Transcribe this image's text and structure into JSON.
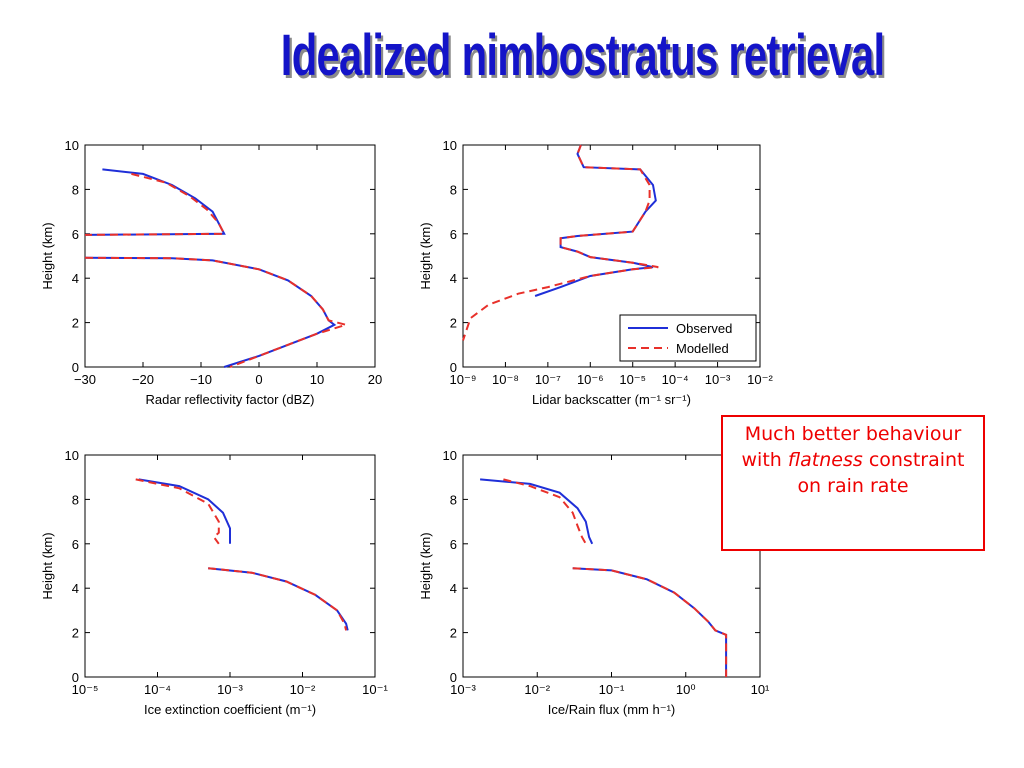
{
  "title": "Idealized nimbostratus retrieval",
  "callout": {
    "before": "Much better behaviour with",
    "emphasis": "flatness",
    "after": "constraint on rain rate"
  },
  "chart_data": [
    {
      "type": "line",
      "xlabel": "Radar reflectivity factor (dBZ)",
      "ylabel": "Height (km)",
      "xscale": "linear",
      "xlim": [
        -30,
        20
      ],
      "ylim": [
        0,
        10
      ],
      "xticks": [
        {
          "value": -30,
          "label": "−30"
        },
        {
          "value": -20,
          "label": "−20"
        },
        {
          "value": -10,
          "label": "−10"
        },
        0,
        10,
        20
      ],
      "yticks": [
        0,
        2,
        4,
        6,
        8,
        10
      ],
      "series": [
        {
          "color": "#1f2fd8",
          "dash": false,
          "x": [
            -27,
            -20,
            -15,
            -11,
            -8,
            -6,
            -30,
            null,
            -30,
            -15,
            -8,
            0,
            5,
            9,
            11,
            12,
            13,
            10,
            5,
            0,
            -6
          ],
          "y": [
            8.9,
            8.7,
            8.2,
            7.6,
            7.0,
            6.0,
            5.95,
            null,
            4.92,
            4.9,
            4.8,
            4.4,
            3.9,
            3.2,
            2.6,
            2.1,
            1.9,
            1.5,
            1.0,
            0.5,
            0
          ]
        },
        {
          "color": "#e8302a",
          "dash": true,
          "x": [
            -22,
            -16,
            -12,
            -9,
            -7,
            -6,
            -30,
            null,
            -30,
            -15,
            -8,
            0,
            5,
            9,
            11,
            12,
            15,
            10,
            5,
            0,
            -5
          ],
          "y": [
            8.7,
            8.3,
            7.7,
            7.1,
            6.5,
            6.0,
            5.95,
            null,
            4.92,
            4.9,
            4.8,
            4.4,
            3.9,
            3.2,
            2.6,
            2.1,
            1.9,
            1.5,
            1.0,
            0.5,
            0
          ]
        }
      ]
    },
    {
      "type": "line",
      "xlabel": "Lidar backscatter (m⁻¹ sr⁻¹)",
      "ylabel": "Height (km)",
      "xscale": "log",
      "xlim": [
        1e-09,
        0.01
      ],
      "ylim": [
        0,
        10
      ],
      "xticks": [
        {
          "value": 1e-09,
          "label": "10⁻⁹"
        },
        {
          "value": 1e-08,
          "label": "10⁻⁸"
        },
        {
          "value": 1e-07,
          "label": "10⁻⁷"
        },
        {
          "value": 1e-06,
          "label": "10⁻⁶"
        },
        {
          "value": 1e-05,
          "label": "10⁻⁵"
        },
        {
          "value": 0.0001,
          "label": "10⁻⁴"
        },
        {
          "value": 0.001,
          "label": "10⁻³"
        },
        {
          "value": 0.01,
          "label": "10⁻²"
        }
      ],
      "yticks": [
        0,
        2,
        4,
        6,
        8,
        10
      ],
      "legend": "lower right",
      "series": [
        {
          "name": "Observed",
          "color": "#1f2fd8",
          "dash": false,
          "x": [
            6e-07,
            5e-07,
            7e-07,
            1.5e-05,
            3e-05,
            3.5e-05,
            2e-05,
            1e-05,
            5e-07,
            2e-07,
            2e-07,
            5e-07,
            1e-06,
            1e-05,
            3e-05,
            1e-05,
            1e-06,
            2e-07,
            5e-08
          ],
          "y": [
            10,
            9.6,
            9.0,
            8.9,
            8.2,
            7.5,
            7.0,
            6.1,
            5.9,
            5.8,
            5.4,
            5.2,
            4.95,
            4.7,
            4.5,
            4.4,
            4.1,
            3.6,
            3.2
          ]
        },
        {
          "name": "Modelled",
          "color": "#e8302a",
          "dash": true,
          "x": [
            6e-07,
            5e-07,
            7e-07,
            1.5e-05,
            2.5e-05,
            2.5e-05,
            2e-05,
            1e-05,
            5e-07,
            2e-07,
            2e-07,
            5e-07,
            1e-06,
            1e-05,
            4e-05,
            1e-05,
            1e-06,
            1e-07,
            2e-08,
            4e-09,
            1.5e-09,
            1e-09
          ],
          "y": [
            10,
            9.6,
            9.0,
            8.9,
            8.2,
            7.5,
            7.0,
            6.1,
            5.9,
            5.8,
            5.4,
            5.2,
            4.95,
            4.7,
            4.5,
            4.4,
            4.1,
            3.6,
            3.3,
            2.8,
            2.2,
            1.2
          ]
        }
      ]
    },
    {
      "type": "line",
      "xlabel": "Ice extinction coefficient (m⁻¹)",
      "ylabel": "Height (km)",
      "xscale": "log",
      "xlim": [
        1e-05,
        0.1
      ],
      "ylim": [
        0,
        10
      ],
      "xticks": [
        {
          "value": 1e-05,
          "label": "10⁻⁵"
        },
        {
          "value": 0.0001,
          "label": "10⁻⁴"
        },
        {
          "value": 0.001,
          "label": "10⁻³"
        },
        {
          "value": 0.01,
          "label": "10⁻²"
        },
        {
          "value": 0.1,
          "label": "10⁻¹"
        }
      ],
      "yticks": [
        0,
        2,
        4,
        6,
        8,
        10
      ],
      "series": [
        {
          "color": "#1f2fd8",
          "dash": false,
          "x": [
            5.5e-05,
            0.0002,
            0.0005,
            0.0008,
            0.001,
            0.001,
            null,
            0.0005,
            0.002,
            0.006,
            0.015,
            0.03,
            0.04,
            0.042
          ],
          "y": [
            8.9,
            8.6,
            8.0,
            7.4,
            6.7,
            6.0,
            null,
            4.9,
            4.7,
            4.3,
            3.7,
            3.0,
            2.4,
            2.1
          ]
        },
        {
          "color": "#e8302a",
          "dash": true,
          "x": [
            5e-05,
            0.0002,
            0.0005,
            0.0007,
            0.0007,
            0.0006,
            0.0007,
            null,
            0.0005,
            0.002,
            0.006,
            0.015,
            0.03,
            0.038,
            0.04
          ],
          "y": [
            8.9,
            8.5,
            7.8,
            7.0,
            6.5,
            6.3,
            6.0,
            null,
            4.9,
            4.7,
            4.3,
            3.7,
            3.0,
            2.4,
            2.1
          ]
        }
      ]
    },
    {
      "type": "line",
      "xlabel": "Ice/Rain flux (mm h⁻¹)",
      "ylabel": "Height (km)",
      "xscale": "log",
      "xlim": [
        0.001,
        10
      ],
      "ylim": [
        0,
        10
      ],
      "xticks": [
        {
          "value": 0.001,
          "label": "10⁻³"
        },
        {
          "value": 0.01,
          "label": "10⁻²"
        },
        {
          "value": 0.1,
          "label": "10⁻¹"
        },
        {
          "value": 1,
          "label": "10⁰"
        },
        {
          "value": 10,
          "label": "10¹"
        }
      ],
      "yticks": [
        0,
        2,
        4,
        6,
        8,
        10
      ],
      "series": [
        {
          "color": "#1f2fd8",
          "dash": false,
          "x": [
            0.0017,
            0.008,
            0.02,
            0.035,
            0.045,
            0.05,
            0.055,
            null,
            0.03,
            0.1,
            0.3,
            0.7,
            1.3,
            2,
            2.5,
            3.5,
            3.5
          ],
          "y": [
            8.9,
            8.7,
            8.3,
            7.6,
            7.0,
            6.3,
            6.0,
            null,
            4.9,
            4.8,
            4.4,
            3.8,
            3.1,
            2.5,
            2.1,
            1.9,
            0
          ]
        },
        {
          "color": "#e8302a",
          "dash": true,
          "x": [
            0.0035,
            0.008,
            0.02,
            0.03,
            0.035,
            0.04,
            0.045,
            null,
            0.03,
            0.1,
            0.3,
            0.7,
            1.3,
            2,
            2.5,
            3.5,
            3.5
          ],
          "y": [
            8.9,
            8.6,
            8.1,
            7.4,
            6.8,
            6.3,
            6.0,
            null,
            4.9,
            4.8,
            4.4,
            3.8,
            3.1,
            2.5,
            2.1,
            1.9,
            0
          ]
        }
      ]
    }
  ]
}
